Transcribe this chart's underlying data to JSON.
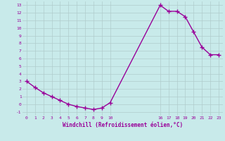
{
  "x": [
    0,
    1,
    2,
    3,
    4,
    5,
    6,
    7,
    8,
    9,
    10,
    16,
    17,
    18,
    19,
    20,
    21,
    22,
    23
  ],
  "y": [
    3.0,
    2.2,
    1.5,
    1.0,
    0.5,
    0.0,
    -0.3,
    -0.5,
    -0.7,
    -0.5,
    0.2,
    13.0,
    12.2,
    12.2,
    11.5,
    9.5,
    7.5,
    6.5,
    6.5
  ],
  "xticks": [
    0,
    1,
    2,
    3,
    4,
    5,
    6,
    7,
    8,
    9,
    10,
    16,
    17,
    18,
    19,
    20,
    21,
    22,
    23
  ],
  "yticks": [
    -1,
    0,
    1,
    2,
    3,
    4,
    5,
    6,
    7,
    8,
    9,
    10,
    11,
    12,
    13
  ],
  "ylim": [
    -1.5,
    13.5
  ],
  "xlim": [
    -0.5,
    23.5
  ],
  "xlabel": "Windchill (Refroidissement éolien,°C)",
  "line_color": "#990099",
  "bg_color": "#c8eaea",
  "grid_color": "#b0cccc",
  "marker": "+",
  "marker_size": 4,
  "linewidth": 1.0
}
